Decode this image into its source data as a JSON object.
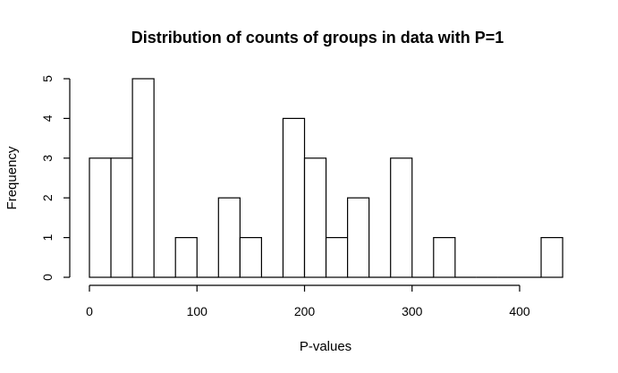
{
  "chart_data": {
    "type": "bar",
    "title": "Distribution of counts of groups in data with P=1",
    "xlabel": "P-values",
    "ylabel": "Frequency",
    "bin_width": 20,
    "bin_starts": [
      0,
      20,
      40,
      60,
      80,
      100,
      120,
      140,
      160,
      180,
      200,
      220,
      240,
      260,
      280,
      300,
      320,
      340,
      360,
      380,
      400,
      420
    ],
    "values": [
      3,
      3,
      5,
      0,
      1,
      0,
      2,
      1,
      0,
      4,
      3,
      1,
      2,
      0,
      3,
      0,
      1,
      0,
      0,
      0,
      0,
      1
    ],
    "xlim": [
      0,
      440
    ],
    "ylim": [
      0,
      5
    ],
    "x_ticks": [
      "0",
      "100",
      "200",
      "300",
      "400"
    ],
    "y_ticks": [
      "0",
      "1",
      "2",
      "3",
      "4",
      "5"
    ],
    "grid": false,
    "legend": "none"
  }
}
